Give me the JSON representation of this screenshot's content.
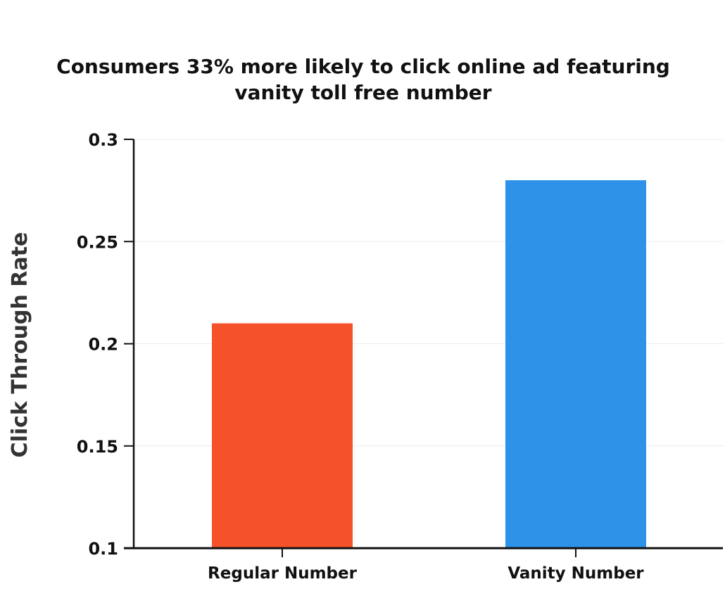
{
  "chart_data": {
    "type": "bar",
    "title_lines": [
      "Consumers 33% more likely to click online ad featuring",
      "vanity toll free number"
    ],
    "xlabel": "",
    "ylabel": "Click Through Rate",
    "categories": [
      "Regular Number",
      "Vanity Number"
    ],
    "values": [
      0.21,
      0.28
    ],
    "colors": [
      "#F5512B",
      "#2E93E8"
    ],
    "ylim": [
      0.1,
      0.3
    ],
    "yticks": [
      0.1,
      0.15,
      0.2,
      0.25,
      0.3
    ],
    "ytick_labels": [
      "0.1",
      "0.15",
      "0.2",
      "0.25",
      "0.3"
    ],
    "grid": true,
    "legend": "none"
  }
}
